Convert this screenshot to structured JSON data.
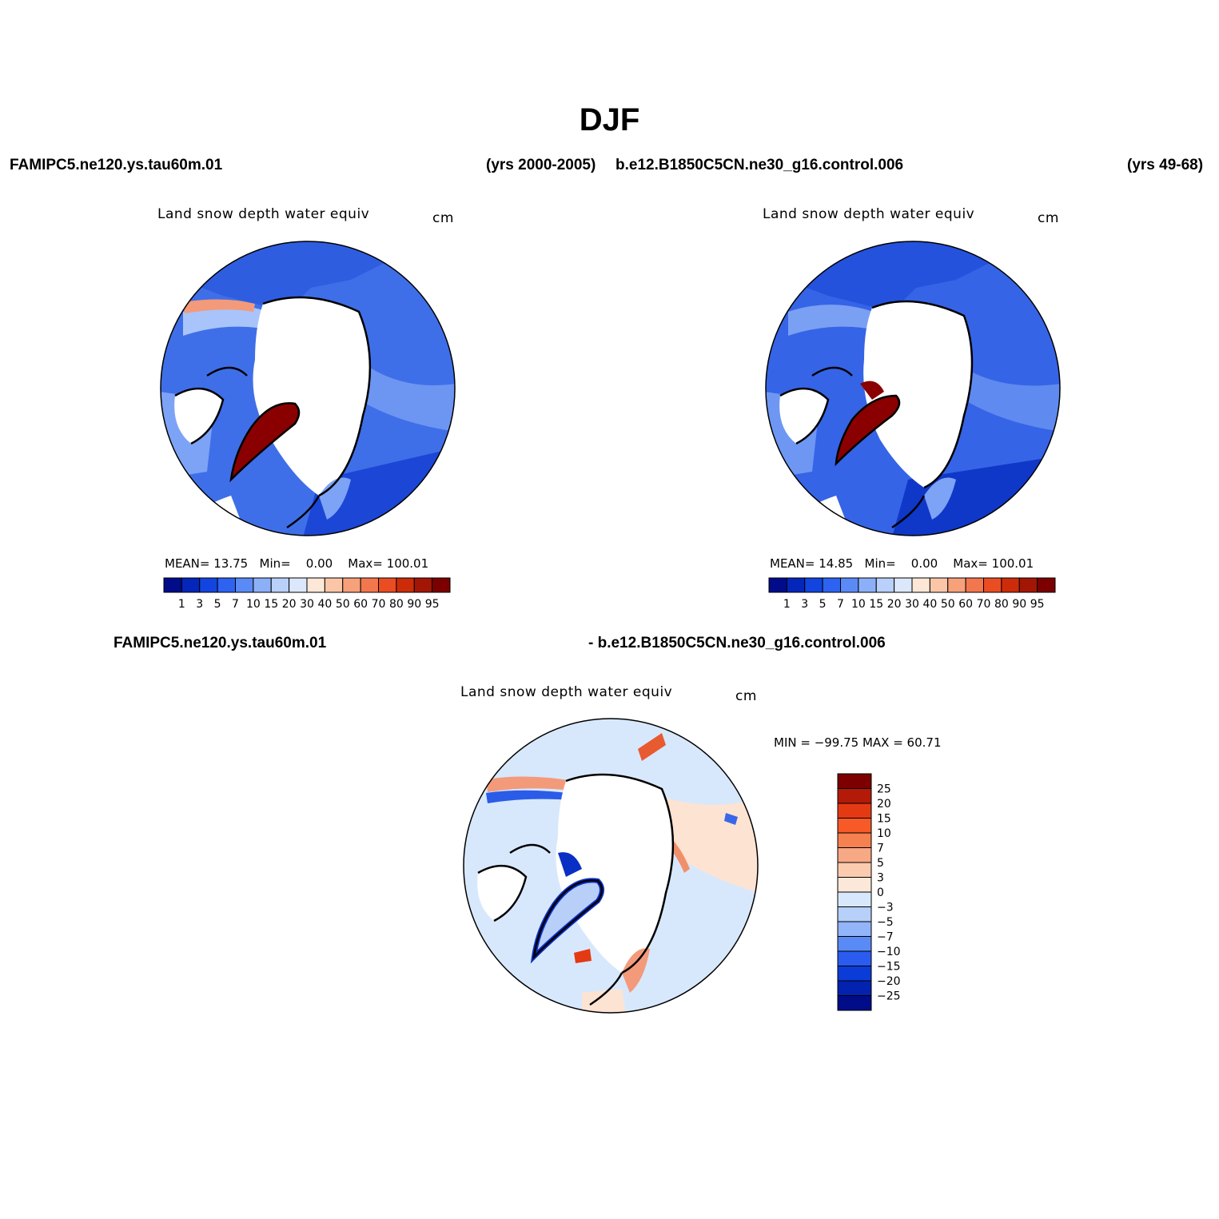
{
  "header": {
    "season": "DJF",
    "case1": "FAMIPC5.ne120.ys.tau60m.01",
    "case1_years": "(yrs 2000-2005)",
    "case2": "b.e12.B1850C5CN.ne30_g16.control.006",
    "case2_years": "(yrs 49-68)"
  },
  "panels": [
    {
      "title": "Land snow depth water equiv",
      "units": "cm",
      "stats": {
        "mean_label": "MEAN=",
        "mean": "13.75",
        "min_label": "Min=",
        "min": "0.00",
        "max_label": "Max=",
        "max": "100.01"
      }
    },
    {
      "title": "Land snow depth water equiv",
      "units": "cm",
      "stats": {
        "mean_label": "MEAN=",
        "mean": "14.85",
        "min_label": "Min=",
        "min": "0.00",
        "max_label": "Max=",
        "max": "100.01"
      }
    }
  ],
  "colorbar_levels": [
    "1",
    "3",
    "5",
    "7",
    "10",
    "15",
    "20",
    "30",
    "40",
    "50",
    "60",
    "70",
    "80",
    "90",
    "95"
  ],
  "colorbar_colors": [
    "#000c8a",
    "#0526ba",
    "#1245e0",
    "#2e63f2",
    "#5a8af6",
    "#8cb0f8",
    "#b9d0fa",
    "#dbe8fc",
    "#fde7d6",
    "#fbc6a8",
    "#f7a17a",
    "#f3774e",
    "#ea4d22",
    "#cd2c0a",
    "#a31606",
    "#7c0000"
  ],
  "difference": {
    "label_left": "FAMIPC5.ne120.ys.tau60m.01",
    "label_right": "- b.e12.B1850C5CN.ne30_g16.control.006",
    "title": "Land snow depth water equiv",
    "units": "cm",
    "minmax": "MIN = −99.75  MAX =   60.71",
    "levels": [
      "25",
      "20",
      "15",
      "10",
      "7",
      "5",
      "3",
      "0",
      "−3",
      "−5",
      "−7",
      "−10",
      "−15",
      "−20",
      "−25"
    ],
    "colors": [
      "#7c0000",
      "#b31b08",
      "#e33a14",
      "#f75a26",
      "#f58050",
      "#f7a884",
      "#fbcbb0",
      "#fce8d8",
      "#d8e8fc",
      "#b6d0fa",
      "#92b4f8",
      "#5a8af6",
      "#2a5cf0",
      "#0c3cd8",
      "#0322b0",
      "#000c88"
    ]
  }
}
